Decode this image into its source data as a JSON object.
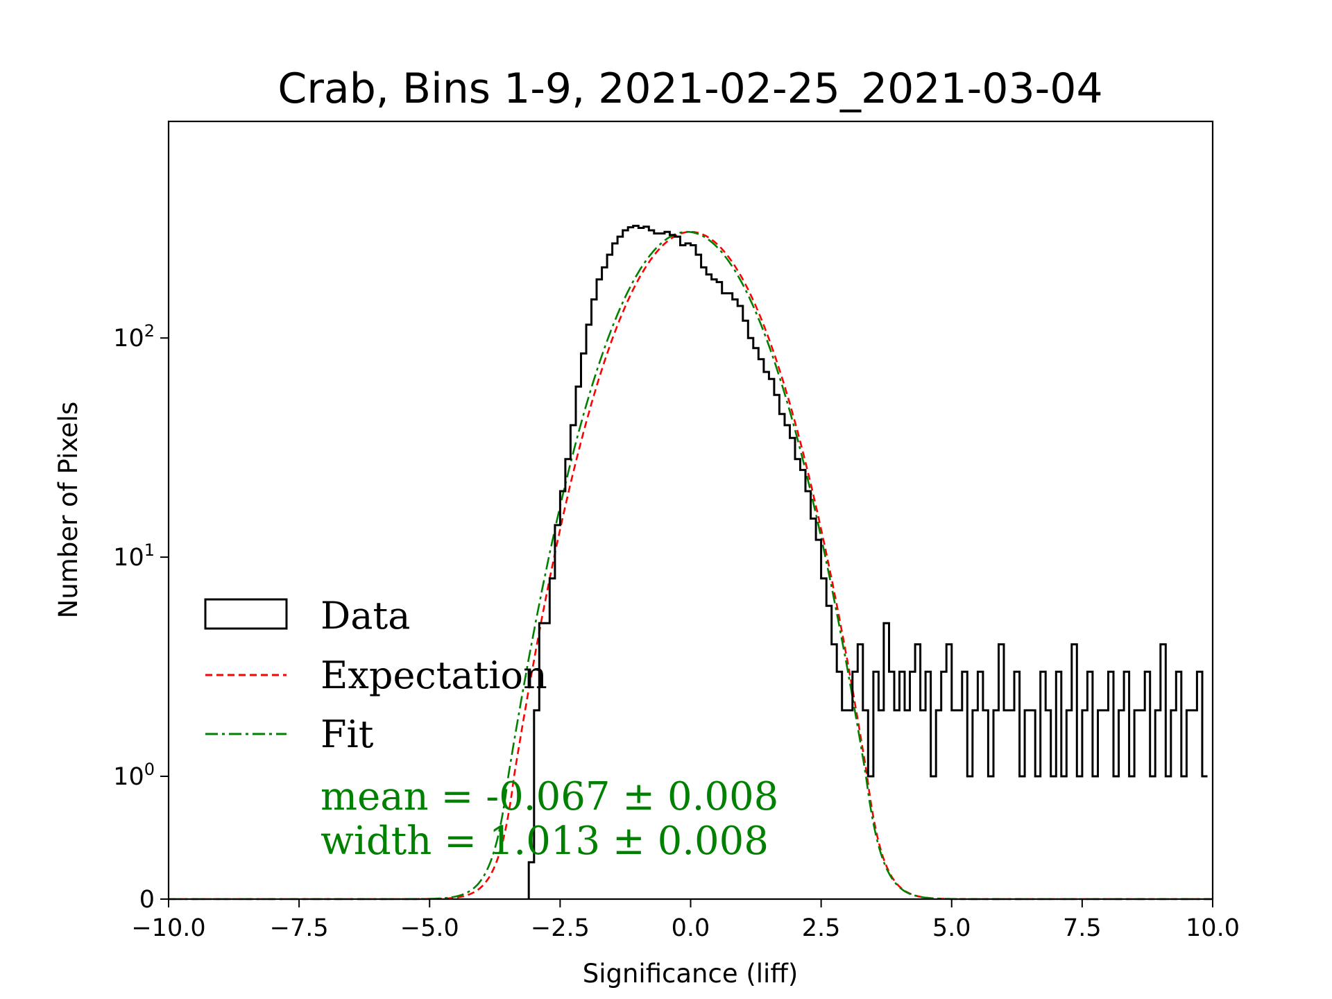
{
  "chart_data": {
    "type": "histogram",
    "title": "Crab, Bins 1-9, 2021-02-25_2021-03-04",
    "xlabel": "Significance (liff)",
    "ylabel": "Number of Pixels",
    "xlim": [
      -10.0,
      10.0
    ],
    "yscale": "symlog",
    "yticks": [
      {
        "value": 0,
        "label": "0"
      },
      {
        "value": 1,
        "base": "10",
        "exp": "0"
      },
      {
        "value": 10,
        "base": "10",
        "exp": "1"
      },
      {
        "value": 100,
        "base": "10",
        "exp": "2"
      }
    ],
    "xticks": [
      "−10.0",
      "−7.5",
      "−5.0",
      "−2.5",
      "0.0",
      "2.5",
      "5.0",
      "7.5",
      "10.0"
    ],
    "xtick_values": [
      -10.0,
      -7.5,
      -5.0,
      -2.5,
      0.0,
      2.5,
      5.0,
      7.5,
      10.0
    ],
    "legend_position": "lower-left",
    "series": [
      {
        "name": "Data",
        "style": "step",
        "color": "#000000",
        "x": [
          -3.05,
          -2.95,
          -2.85,
          -2.75,
          -2.65,
          -2.55,
          -2.45,
          -2.35,
          -2.25,
          -2.15,
          -2.05,
          -1.95,
          -1.85,
          -1.75,
          -1.65,
          -1.55,
          -1.45,
          -1.35,
          -1.25,
          -1.15,
          -1.05,
          -0.95,
          -0.85,
          -0.75,
          -0.65,
          -0.55,
          -0.45,
          -0.35,
          -0.25,
          -0.15,
          -0.05,
          0.05,
          0.15,
          0.25,
          0.35,
          0.45,
          0.55,
          0.65,
          0.75,
          0.85,
          0.95,
          1.05,
          1.15,
          1.25,
          1.35,
          1.45,
          1.55,
          1.65,
          1.75,
          1.85,
          1.95,
          2.05,
          2.15,
          2.25,
          2.35,
          2.45,
          2.55,
          2.65,
          2.75,
          2.85,
          2.95,
          3.05,
          3.15,
          3.25,
          3.35,
          3.45,
          3.55,
          3.65,
          3.75,
          3.85,
          3.95,
          4.05,
          4.15,
          4.25,
          4.35,
          4.45,
          4.55,
          4.65,
          4.75,
          4.85,
          4.95,
          5.05,
          5.15,
          5.25,
          5.35,
          5.45,
          5.55,
          5.65,
          5.75,
          5.85,
          5.95,
          6.05,
          6.15,
          6.25,
          6.35,
          6.45,
          6.55,
          6.65,
          6.75,
          6.85,
          6.95,
          7.05,
          7.15,
          7.25,
          7.35,
          7.45,
          7.55,
          7.65,
          7.75,
          7.85,
          7.95,
          8.05,
          8.15,
          8.25,
          8.35,
          8.45,
          8.55,
          8.65,
          8.75,
          8.85,
          8.95,
          9.05,
          9.15,
          9.25,
          9.35,
          9.45,
          9.55,
          9.65,
          9.75,
          9.85,
          9.95
        ],
        "y": [
          0.3,
          2,
          5,
          5,
          8,
          14,
          20,
          28,
          40,
          60,
          85,
          115,
          150,
          185,
          210,
          240,
          270,
          290,
          310,
          320,
          325,
          318,
          322,
          310,
          300,
          300,
          305,
          295,
          290,
          265,
          270,
          265,
          240,
          210,
          195,
          185,
          180,
          160,
          160,
          150,
          140,
          120,
          100,
          90,
          80,
          70,
          65,
          55,
          45,
          40,
          35,
          28,
          25,
          20,
          15,
          12,
          8,
          6,
          4,
          3,
          2,
          2,
          3,
          4,
          2,
          1,
          3,
          2,
          5,
          3,
          2,
          3,
          2,
          3,
          4,
          2,
          3,
          1,
          2,
          3,
          4,
          2,
          2,
          3,
          1,
          2,
          3,
          2,
          1,
          2,
          4,
          2,
          2,
          3,
          1,
          2,
          2,
          1,
          3,
          2,
          1,
          3,
          1,
          2,
          4,
          1,
          2,
          3,
          1,
          2,
          2,
          3,
          1,
          2,
          3,
          1,
          2,
          2,
          3,
          1,
          2,
          4,
          1,
          2,
          3,
          1,
          2,
          2,
          3,
          1
        ]
      },
      {
        "name": "Expectation",
        "style": "gaussian",
        "color": "#ff0000",
        "dash": "dashed",
        "amplitude": 305,
        "mean": 0.0,
        "sigma": 1.0
      },
      {
        "name": "Fit",
        "style": "gaussian",
        "color": "#008000",
        "dash": "dashdot",
        "amplitude": 305,
        "mean": -0.067,
        "sigma": 1.013
      }
    ],
    "annotations": [
      "mean = -0.067 ± 0.008",
      "width = 1.013 ± 0.008"
    ]
  }
}
